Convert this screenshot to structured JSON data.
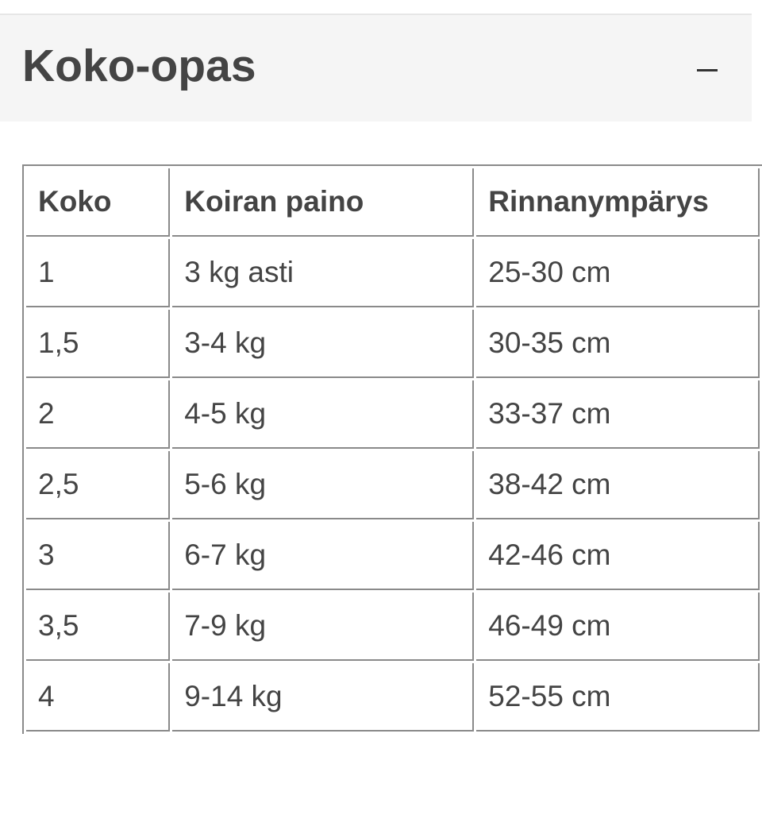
{
  "header": {
    "title": "Koko-opas",
    "toggle_icon": "minus-icon"
  },
  "table": {
    "columns": [
      "Koko",
      "Koiran paino",
      "Rinnanympärys"
    ],
    "rows": [
      [
        "1",
        "3 kg asti",
        "25-30 cm"
      ],
      [
        "1,5",
        "3-4 kg",
        "30-35 cm"
      ],
      [
        "2",
        "4-5 kg",
        "33-37 cm"
      ],
      [
        "2,5",
        "5-6 kg",
        "38-42 cm"
      ],
      [
        "3",
        "6-7 kg",
        "42-46 cm"
      ],
      [
        "3,5",
        "7-9 kg",
        "46-49 cm"
      ],
      [
        "4",
        "9-14 kg",
        "52-55 cm"
      ]
    ]
  }
}
